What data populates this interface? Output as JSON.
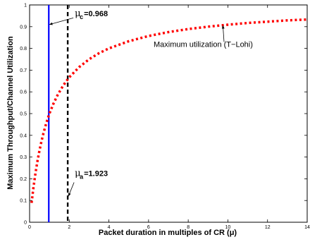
{
  "chart_data": {
    "type": "line",
    "xlabel": "Packet duration in multiples of CR (μ)",
    "ylabel": "Maximum Throughput/Channel Utilization",
    "xlim": [
      0,
      14
    ],
    "ylim": [
      0,
      1
    ],
    "xticks": [
      0,
      2,
      4,
      6,
      8,
      10,
      12,
      14
    ],
    "yticks": [
      0,
      0.1,
      0.2,
      0.3,
      0.4,
      0.5,
      0.6,
      0.7,
      0.8,
      0.9,
      1
    ],
    "grid": false,
    "series": [
      {
        "name": "Maximum utilization (T−Lohi)",
        "style": "dotted",
        "color": "#ff0000",
        "x": [
          0.1,
          0.2,
          0.3,
          0.4,
          0.5,
          0.6,
          0.7,
          0.8,
          0.9,
          1.0,
          1.2,
          1.4,
          1.6,
          1.8,
          2.0,
          2.5,
          3.0,
          3.5,
          4.0,
          5.0,
          6.0,
          7.0,
          8.0,
          9.0,
          10.0,
          11.0,
          12.0,
          13.0,
          14.0
        ],
        "y": [
          0.089,
          0.164,
          0.228,
          0.283,
          0.331,
          0.373,
          0.41,
          0.443,
          0.473,
          0.5,
          0.545,
          0.583,
          0.615,
          0.643,
          0.667,
          0.714,
          0.75,
          0.778,
          0.8,
          0.833,
          0.857,
          0.875,
          0.889,
          0.9,
          0.909,
          0.917,
          0.923,
          0.929,
          0.933
        ]
      }
    ],
    "vlines": [
      {
        "x": 0.968,
        "style": "solid",
        "color": "#0000ff"
      },
      {
        "x": 1.923,
        "style": "dashed",
        "color": "#000000"
      }
    ],
    "annotations": [
      {
        "symbol": "μ",
        "sub": "c",
        "value": "=0.968",
        "arrow_to_x": 0.968,
        "arrow_to_y": 0.91
      },
      {
        "symbol": "μ",
        "sub": "a",
        "value": "=1.923",
        "arrow_to_x": 1.923,
        "arrow_to_y": 0.12
      }
    ],
    "legend_label": "Maximum utilization (T−Lohi)",
    "legend_arrow_to": {
      "x": 9.75,
      "y": 0.905
    }
  }
}
